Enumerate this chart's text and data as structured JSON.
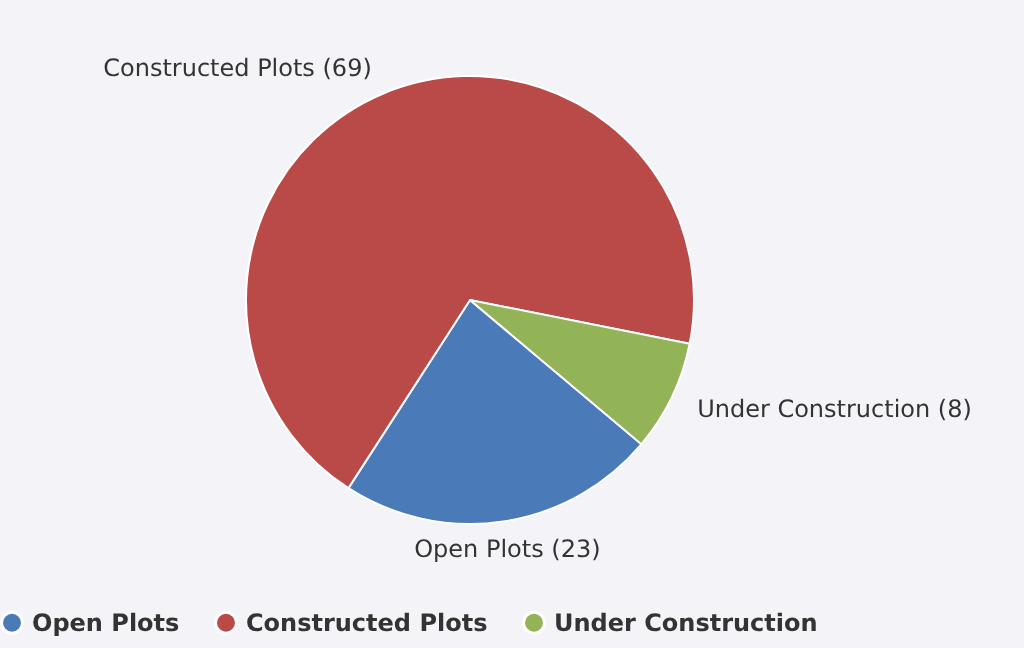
{
  "chart_data": {
    "type": "pie",
    "categories": [
      "Open Plots",
      "Constructed Plots",
      "Under Construction"
    ],
    "values": [
      23,
      69,
      8
    ],
    "colors": [
      "#4a7ab8",
      "#b94a48",
      "#93b357"
    ],
    "value_labels": [
      "(23)",
      "(69)",
      "(8)"
    ],
    "legend": "bottom"
  }
}
